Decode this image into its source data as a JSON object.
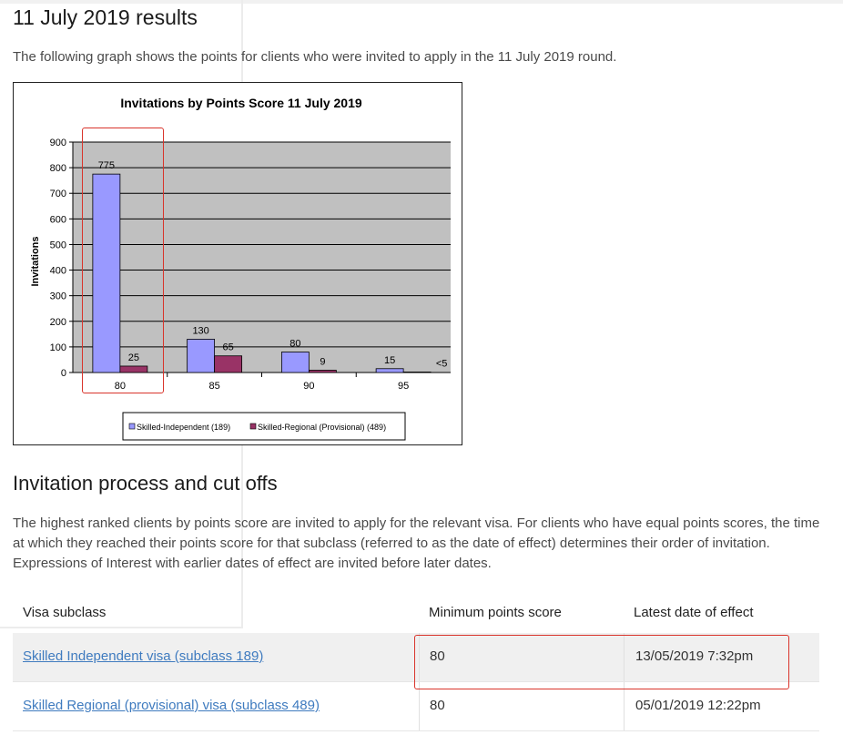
{
  "results_heading": "11 July 2019 results",
  "intro_text": "The following graph shows the points for clients who were invited to apply in the 11 July 2019 round.",
  "chart_data": {
    "type": "bar",
    "title": "Invitations by Points Score 11 July 2019",
    "xlabel": "",
    "ylabel": "Invitations",
    "ylim": [
      0,
      900
    ],
    "yticks": [
      0,
      100,
      200,
      300,
      400,
      500,
      600,
      700,
      800,
      900
    ],
    "categories": [
      "80",
      "85",
      "90",
      "95"
    ],
    "series": [
      {
        "name": "Skilled-Independent (189)",
        "values": [
          775,
          130,
          80,
          15
        ],
        "labels": [
          "775",
          "130",
          "80",
          "15"
        ],
        "color": "#9999ff"
      },
      {
        "name": "Skilled-Regional (Provisional) (489)",
        "values": [
          25,
          65,
          9,
          2
        ],
        "labels": [
          "25",
          "65",
          "9",
          "<5"
        ],
        "color": "#993366"
      }
    ],
    "grid": true,
    "legend": "bottom"
  },
  "process_heading": "Invitation process and cut offs",
  "process_text": "The highest ranked clients by points score are invited to apply for the relevant visa. For clients who have equal points scores, the time at which they reached their points score for that subclass (referred to as the date of effect) determines their order of invitation. Expressions of Interest with earlier dates of effect are invited before later dates.",
  "table": {
    "headers": [
      "Visa subclass",
      "Minimum points score",
      "Latest date of effect"
    ],
    "rows": [
      {
        "visa": "Skilled Independent visa (subclass 189)",
        "points": "80",
        "date": "13/05/2019 7:32pm"
      },
      {
        "visa": "Skilled Regional (provisional) visa (subclass 489)",
        "points": "80",
        "date": "05/01/2019 12:22pm"
      }
    ]
  },
  "colors": {
    "highlight": "#d9342b",
    "link": "#3f7bbf",
    "plot_bg": "#c0c0c0"
  }
}
